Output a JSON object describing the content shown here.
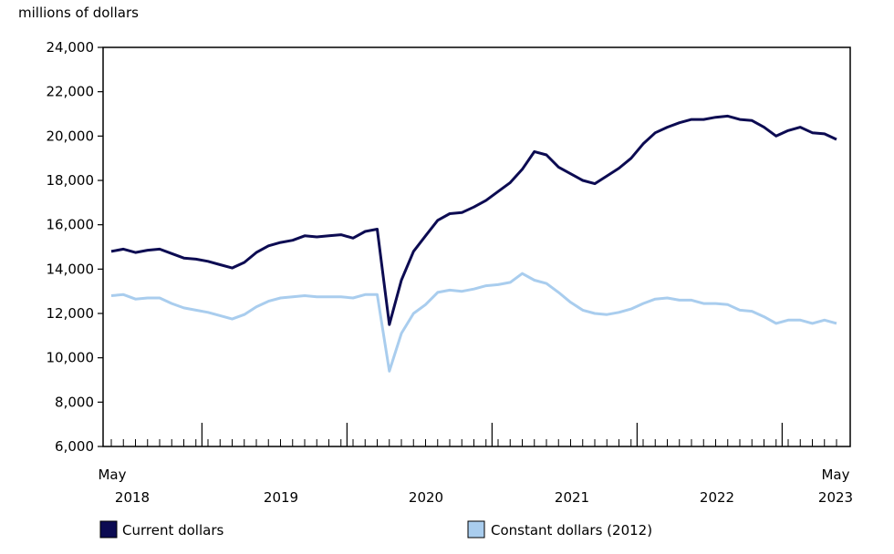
{
  "chart_data": {
    "type": "line",
    "unit_label": "millions of dollars",
    "x": [
      "2018-05",
      "2018-06",
      "2018-07",
      "2018-08",
      "2018-09",
      "2018-10",
      "2018-11",
      "2018-12",
      "2019-01",
      "2019-02",
      "2019-03",
      "2019-04",
      "2019-05",
      "2019-06",
      "2019-07",
      "2019-08",
      "2019-09",
      "2019-10",
      "2019-11",
      "2019-12",
      "2020-01",
      "2020-02",
      "2020-03",
      "2020-04",
      "2020-05",
      "2020-06",
      "2020-07",
      "2020-08",
      "2020-09",
      "2020-10",
      "2020-11",
      "2020-12",
      "2021-01",
      "2021-02",
      "2021-03",
      "2021-04",
      "2021-05",
      "2021-06",
      "2021-07",
      "2021-08",
      "2021-09",
      "2021-10",
      "2021-11",
      "2021-12",
      "2022-01",
      "2022-02",
      "2022-03",
      "2022-04",
      "2022-05",
      "2022-06",
      "2022-07",
      "2022-08",
      "2022-09",
      "2022-10",
      "2022-11",
      "2022-12",
      "2023-01",
      "2023-02",
      "2023-03",
      "2023-04",
      "2023-05"
    ],
    "series": [
      {
        "name": "Current dollars",
        "color": "#0c0b52",
        "values": [
          14800,
          14900,
          14750,
          14850,
          14900,
          14700,
          14500,
          14450,
          14350,
          14200,
          14050,
          14300,
          14750,
          15050,
          15200,
          15300,
          15500,
          15450,
          15500,
          15550,
          15400,
          15700,
          15800,
          11500,
          13500,
          14800,
          15500,
          16200,
          16500,
          16550,
          16800,
          17100,
          17500,
          17900,
          18500,
          19300,
          19150,
          18600,
          18300,
          18000,
          17850,
          18200,
          18550,
          19000,
          19650,
          20150,
          20400,
          20600,
          20750,
          20750,
          20850,
          20900,
          20750,
          20700,
          20400,
          20000,
          20250,
          20400,
          20150,
          20100,
          19850
        ]
      },
      {
        "name": "Constant dollars (2012)",
        "color": "#a9cdee",
        "values": [
          12800,
          12850,
          12650,
          12700,
          12700,
          12450,
          12250,
          12150,
          12050,
          11900,
          11750,
          11950,
          12300,
          12550,
          12700,
          12750,
          12800,
          12750,
          12750,
          12750,
          12700,
          12850,
          12850,
          9400,
          11100,
          12000,
          12400,
          12950,
          13050,
          13000,
          13100,
          13250,
          13300,
          13400,
          13800,
          13500,
          13350,
          12950,
          12500,
          12150,
          12000,
          11950,
          12050,
          12200,
          12450,
          12650,
          12700,
          12600,
          12600,
          12450,
          12450,
          12400,
          12150,
          12100,
          11850,
          11550,
          11700,
          11700,
          11550,
          11700,
          11550
        ]
      }
    ],
    "ylim": [
      6000,
      24000
    ],
    "yticks": [
      6000,
      8000,
      10000,
      12000,
      14000,
      16000,
      18000,
      20000,
      22000,
      24000
    ],
    "ytick_labels": [
      "6,000",
      "8,000",
      "10,000",
      "12,000",
      "14,000",
      "16,000",
      "18,000",
      "20,000",
      "22,000",
      "24,000"
    ],
    "xaxis": {
      "start_label_month": "May",
      "end_label_month": "May",
      "year_labels": [
        "2018",
        "2019",
        "2020",
        "2021",
        "2022",
        "2023"
      ]
    },
    "grid": false,
    "legend": "bottom"
  }
}
